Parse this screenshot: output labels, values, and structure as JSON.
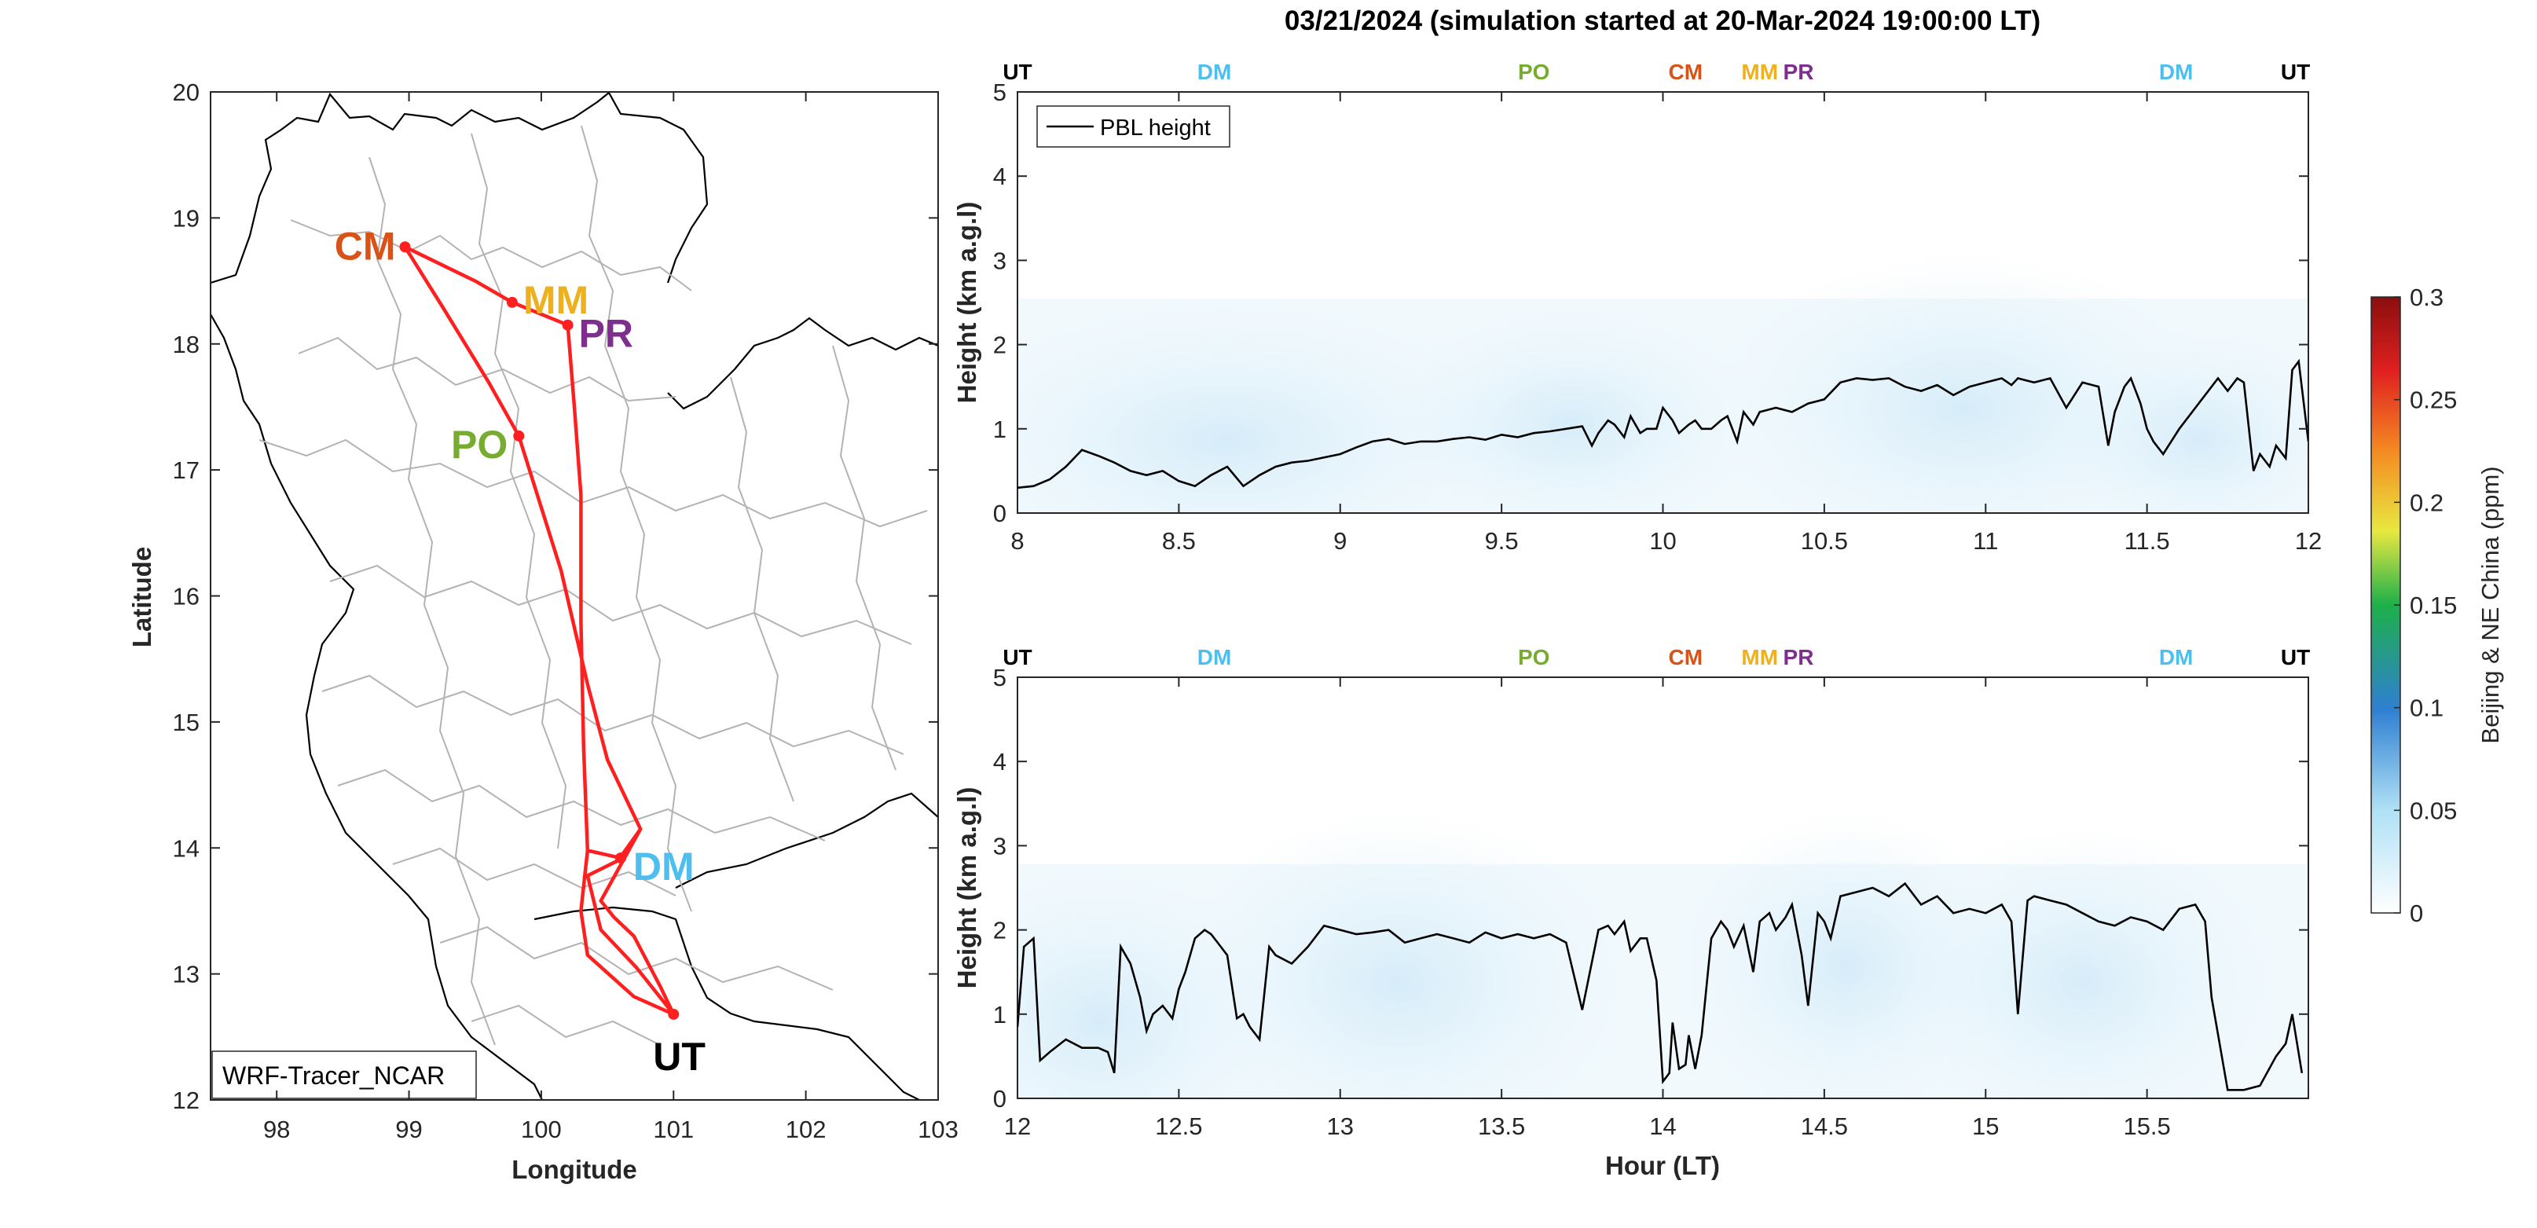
{
  "title": "03/21/2024 (simulation started at 20-Mar-2024 19:00:00 LT)",
  "colors": {
    "route": "#ff1f1f",
    "UT": "#000000",
    "DM": "#4dbeee",
    "PO": "#77ac30",
    "CM": "#d95319",
    "MM": "#edb120",
    "PR": "#7e2f8e",
    "pbl": "#000000",
    "border": "#000000",
    "province": "#b0b0b0"
  },
  "chart_data": [
    {
      "type": "line",
      "name": "flight-track-map",
      "xlabel": "Longitude",
      "ylabel": "Latitude",
      "xlim": [
        97.5,
        103
      ],
      "ylim": [
        12,
        20
      ],
      "xticks": [
        98,
        99,
        100,
        101,
        102,
        103
      ],
      "yticks": [
        12,
        13,
        14,
        15,
        16,
        17,
        18,
        19,
        20
      ],
      "source_label": "WRF-Tracer_NCAR",
      "sites": [
        {
          "code": "CM",
          "lon": 98.97,
          "lat": 18.77
        },
        {
          "code": "MM",
          "lon": 99.78,
          "lat": 18.33
        },
        {
          "code": "PR",
          "lon": 100.2,
          "lat": 18.15
        },
        {
          "code": "PO",
          "lon": 99.83,
          "lat": 17.27
        },
        {
          "code": "DM",
          "lon": 100.6,
          "lat": 13.92
        },
        {
          "code": "UT",
          "lon": 101.0,
          "lat": 12.68
        }
      ],
      "route": [
        [
          101.0,
          12.68
        ],
        [
          100.72,
          13.05
        ],
        [
          100.45,
          13.35
        ],
        [
          100.35,
          13.78
        ],
        [
          100.58,
          13.9
        ],
        [
          100.75,
          14.15
        ],
        [
          100.5,
          14.7
        ],
        [
          100.35,
          15.3
        ],
        [
          100.15,
          16.2
        ],
        [
          99.83,
          17.27
        ],
        [
          99.6,
          17.7
        ],
        [
          99.25,
          18.3
        ],
        [
          98.97,
          18.77
        ],
        [
          99.5,
          18.5
        ],
        [
          99.78,
          18.33
        ],
        [
          100.2,
          18.15
        ],
        [
          100.25,
          17.5
        ],
        [
          100.3,
          16.8
        ],
        [
          100.3,
          15.8
        ],
        [
          100.32,
          14.8
        ],
        [
          100.35,
          13.98
        ],
        [
          100.6,
          13.92
        ],
        [
          100.75,
          14.15
        ],
        [
          100.45,
          13.58
        ],
        [
          100.55,
          13.45
        ],
        [
          100.7,
          13.3
        ],
        [
          100.9,
          12.9
        ],
        [
          101.0,
          12.68
        ],
        [
          100.7,
          12.82
        ],
        [
          100.35,
          13.15
        ],
        [
          100.3,
          13.5
        ],
        [
          100.35,
          13.98
        ]
      ]
    },
    {
      "type": "line",
      "name": "pbl-panel-1",
      "ylabel": "Height (km a.g.l)",
      "xlim": [
        8,
        12
      ],
      "ylim": [
        0,
        5
      ],
      "xticks": [
        8,
        8.5,
        9,
        9.5,
        10,
        10.5,
        11,
        11.5,
        12
      ],
      "yticks": [
        0,
        1,
        2,
        3,
        4,
        5
      ],
      "legend": "PBL height",
      "legend_loc": "top-left",
      "top_labels": [
        {
          "code": "UT",
          "x": 8.0
        },
        {
          "code": "DM",
          "x": 8.61
        },
        {
          "code": "PO",
          "x": 9.6
        },
        {
          "code": "CM",
          "x": 10.07
        },
        {
          "code": "MM",
          "x": 10.3
        },
        {
          "code": "PR",
          "x": 10.42
        },
        {
          "code": "DM",
          "x": 11.59
        },
        {
          "code": "UT",
          "x": 11.96
        }
      ],
      "series": [
        {
          "name": "PBL height",
          "x": [
            8.0,
            8.05,
            8.1,
            8.15,
            8.2,
            8.25,
            8.3,
            8.35,
            8.4,
            8.45,
            8.5,
            8.55,
            8.6,
            8.65,
            8.7,
            8.75,
            8.8,
            8.85,
            8.9,
            9.0,
            9.05,
            9.1,
            9.15,
            9.2,
            9.25,
            9.3,
            9.35,
            9.4,
            9.45,
            9.5,
            9.55,
            9.6,
            9.65,
            9.7,
            9.75,
            9.78,
            9.8,
            9.83,
            9.85,
            9.88,
            9.9,
            9.93,
            9.95,
            9.98,
            10.0,
            10.03,
            10.05,
            10.08,
            10.1,
            10.12,
            10.15,
            10.18,
            10.2,
            10.23,
            10.25,
            10.28,
            10.3,
            10.35,
            10.4,
            10.45,
            10.5,
            10.55,
            10.6,
            10.65,
            10.7,
            10.75,
            10.8,
            10.85,
            10.9,
            10.95,
            11.0,
            11.05,
            11.08,
            11.1,
            11.15,
            11.2,
            11.25,
            11.3,
            11.35,
            11.38,
            11.4,
            11.43,
            11.45,
            11.48,
            11.5,
            11.52,
            11.55,
            11.6,
            11.65,
            11.7,
            11.72,
            11.75,
            11.78,
            11.8,
            11.83,
            11.85,
            11.88,
            11.9,
            11.93,
            11.95,
            11.97,
            12.0
          ],
          "y": [
            0.3,
            0.32,
            0.4,
            0.55,
            0.75,
            0.68,
            0.6,
            0.5,
            0.45,
            0.5,
            0.38,
            0.32,
            0.45,
            0.55,
            0.32,
            0.45,
            0.55,
            0.6,
            0.62,
            0.7,
            0.78,
            0.85,
            0.88,
            0.82,
            0.85,
            0.85,
            0.88,
            0.9,
            0.87,
            0.93,
            0.9,
            0.95,
            0.97,
            1.0,
            1.03,
            0.8,
            0.95,
            1.1,
            1.05,
            0.9,
            1.15,
            0.95,
            1.0,
            1.0,
            1.25,
            1.1,
            0.95,
            1.05,
            1.1,
            1.0,
            1.0,
            1.1,
            1.15,
            0.85,
            1.2,
            1.05,
            1.2,
            1.25,
            1.2,
            1.3,
            1.35,
            1.55,
            1.6,
            1.58,
            1.6,
            1.5,
            1.45,
            1.52,
            1.4,
            1.5,
            1.55,
            1.6,
            1.52,
            1.6,
            1.55,
            1.6,
            1.25,
            1.55,
            1.5,
            0.8,
            1.2,
            1.5,
            1.6,
            1.3,
            1.0,
            0.85,
            0.7,
            1.0,
            1.25,
            1.5,
            1.6,
            1.45,
            1.6,
            1.55,
            0.5,
            0.7,
            0.55,
            0.8,
            0.65,
            1.7,
            1.8,
            0.85
          ]
        }
      ]
    },
    {
      "type": "line",
      "name": "pbl-panel-2",
      "xlabel": "Hour (LT)",
      "ylabel": "Height (km a.g.l)",
      "xlim": [
        12,
        16
      ],
      "ylim": [
        0,
        5
      ],
      "xticks": [
        12,
        12.5,
        13,
        13.5,
        14,
        14.5,
        15,
        15.5
      ],
      "yticks": [
        0,
        1,
        2,
        3,
        4,
        5
      ],
      "top_labels": [
        {
          "code": "UT",
          "x": 12.0
        },
        {
          "code": "DM",
          "x": 12.61
        },
        {
          "code": "PO",
          "x": 13.6
        },
        {
          "code": "CM",
          "x": 14.07
        },
        {
          "code": "MM",
          "x": 14.3
        },
        {
          "code": "PR",
          "x": 14.42
        },
        {
          "code": "DM",
          "x": 15.59
        },
        {
          "code": "UT",
          "x": 15.96
        }
      ],
      "series": [
        {
          "name": "PBL height",
          "x": [
            12.0,
            12.02,
            12.05,
            12.07,
            12.1,
            12.15,
            12.2,
            12.25,
            12.28,
            12.3,
            12.32,
            12.35,
            12.38,
            12.4,
            12.42,
            12.45,
            12.48,
            12.5,
            12.52,
            12.55,
            12.58,
            12.6,
            12.63,
            12.65,
            12.68,
            12.7,
            12.72,
            12.75,
            12.78,
            12.8,
            12.85,
            12.9,
            12.95,
            13.0,
            13.05,
            13.1,
            13.15,
            13.2,
            13.25,
            13.3,
            13.35,
            13.4,
            13.45,
            13.5,
            13.55,
            13.6,
            13.65,
            13.7,
            13.75,
            13.8,
            13.83,
            13.85,
            13.88,
            13.9,
            13.93,
            13.95,
            13.98,
            14.0,
            14.02,
            14.03,
            14.05,
            14.07,
            14.08,
            14.1,
            14.12,
            14.15,
            14.18,
            14.2,
            14.22,
            14.25,
            14.28,
            14.3,
            14.33,
            14.35,
            14.38,
            14.4,
            14.43,
            14.45,
            14.48,
            14.5,
            14.52,
            14.55,
            14.6,
            14.65,
            14.7,
            14.75,
            14.8,
            14.85,
            14.9,
            14.95,
            15.0,
            15.05,
            15.08,
            15.1,
            15.13,
            15.15,
            15.2,
            15.25,
            15.3,
            15.35,
            15.4,
            15.45,
            15.5,
            15.55,
            15.6,
            15.65,
            15.68,
            15.7,
            15.75,
            15.8,
            15.85,
            15.9,
            15.93,
            15.95,
            15.98
          ],
          "y": [
            0.85,
            1.8,
            1.9,
            0.45,
            0.55,
            0.7,
            0.6,
            0.6,
            0.55,
            0.3,
            1.8,
            1.6,
            1.2,
            0.8,
            1.0,
            1.1,
            0.95,
            1.3,
            1.5,
            1.9,
            2.0,
            1.95,
            1.8,
            1.7,
            0.95,
            1.0,
            0.85,
            0.7,
            1.8,
            1.7,
            1.6,
            1.8,
            2.05,
            2.0,
            1.95,
            1.97,
            2.0,
            1.85,
            1.9,
            1.95,
            1.9,
            1.85,
            1.97,
            1.9,
            1.95,
            1.9,
            1.95,
            1.85,
            1.05,
            2.0,
            2.05,
            1.95,
            2.1,
            1.75,
            1.9,
            1.9,
            1.4,
            0.2,
            0.3,
            0.9,
            0.35,
            0.4,
            0.75,
            0.35,
            0.75,
            1.9,
            2.1,
            2.0,
            1.8,
            2.05,
            1.5,
            2.1,
            2.2,
            2.0,
            2.15,
            2.3,
            1.7,
            1.1,
            2.2,
            2.1,
            1.9,
            2.4,
            2.45,
            2.5,
            2.4,
            2.55,
            2.3,
            2.4,
            2.2,
            2.25,
            2.2,
            2.3,
            2.1,
            1.0,
            2.35,
            2.4,
            2.35,
            2.3,
            2.2,
            2.1,
            2.05,
            2.15,
            2.1,
            2.0,
            2.25,
            2.3,
            2.1,
            1.2,
            0.1,
            0.1,
            0.15,
            0.5,
            0.65,
            1.0,
            0.3
          ]
        }
      ]
    },
    {
      "type": "heatmap",
      "name": "colorbar",
      "label": "Beijing & NE China (ppm)",
      "clim": [
        0,
        0.3
      ],
      "ticks": [
        "0",
        "0.05",
        "0.1",
        "0.15",
        "0.2",
        "0.25",
        "0.3"
      ]
    }
  ]
}
